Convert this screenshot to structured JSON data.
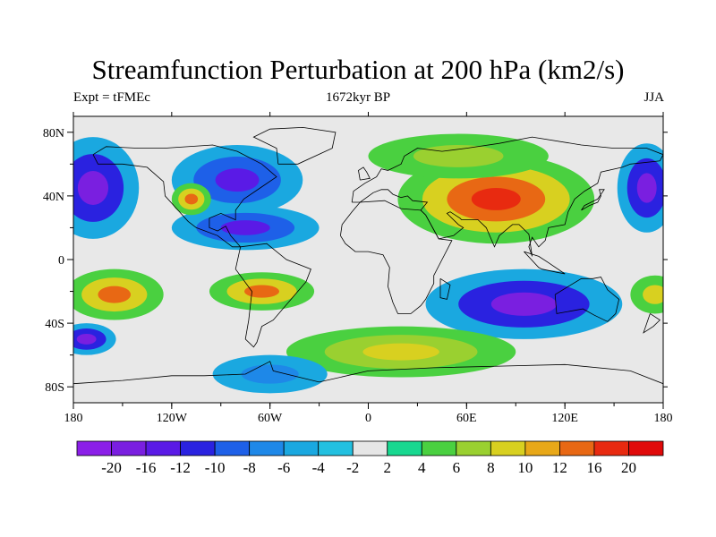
{
  "title": "Streamfunction Perturbation at 200 hPa (km2/s)",
  "subtitle_left": "Expt = tFMEc",
  "subtitle_center": "1672kyr BP",
  "subtitle_right": "JJA",
  "map": {
    "projection": "cylindrical-equidistant",
    "lon_range": [
      -180,
      180
    ],
    "lat_range": [
      -90,
      90
    ],
    "x_ticks": [
      {
        "lon": -180,
        "label": "180"
      },
      {
        "lon": -120,
        "label": "120W"
      },
      {
        "lon": -60,
        "label": "60W"
      },
      {
        "lon": 0,
        "label": "0"
      },
      {
        "lon": 60,
        "label": "60E"
      },
      {
        "lon": 120,
        "label": "120E"
      },
      {
        "lon": 180,
        "label": "180"
      }
    ],
    "y_ticks": [
      {
        "lat": 80,
        "label": "80N"
      },
      {
        "lat": 40,
        "label": "40N"
      },
      {
        "lat": 0,
        "label": "0"
      },
      {
        "lat": -40,
        "label": "40S"
      },
      {
        "lat": -80,
        "label": "80S"
      }
    ],
    "background_color": "#e8e8e8",
    "coastline_color": "#000000"
  },
  "colorbar": {
    "labels": [
      "-20",
      "-16",
      "-12",
      "-10",
      "-8",
      "-6",
      "-4",
      "-2",
      "2",
      "4",
      "6",
      "8",
      "10",
      "12",
      "16",
      "20"
    ],
    "colors": [
      "#8b1fe8",
      "#7a1fe0",
      "#5a1ae6",
      "#2a22e0",
      "#1e60e8",
      "#1e88e8",
      "#1aa8e0",
      "#22c0e0",
      "#e6e6e6",
      "#18d890",
      "#4ad040",
      "#9ad030",
      "#d8d020",
      "#e8a818",
      "#e86814",
      "#e82a10",
      "#e00a0a"
    ]
  },
  "field_blobs": [
    {
      "lon": -168,
      "lat": 45,
      "rx": 28,
      "ry": 32,
      "levels": [
        "-4",
        "-10",
        "-16"
      ]
    },
    {
      "lon": 170,
      "lat": 45,
      "rx": 18,
      "ry": 28,
      "levels": [
        "-4",
        "-10",
        "-16"
      ]
    },
    {
      "lon": -80,
      "lat": 50,
      "rx": 40,
      "ry": 22,
      "levels": [
        "-4",
        "-8",
        "-12"
      ]
    },
    {
      "lon": -75,
      "lat": 20,
      "rx": 45,
      "ry": 14,
      "levels": [
        "-4",
        "-8",
        "-12"
      ]
    },
    {
      "lon": -108,
      "lat": 38,
      "rx": 12,
      "ry": 10,
      "levels": [
        "4",
        "8",
        "12"
      ]
    },
    {
      "lon": 78,
      "lat": 38,
      "rx": 60,
      "ry": 28,
      "levels": [
        "4",
        "8",
        "12",
        "16"
      ]
    },
    {
      "lon": 55,
      "lat": 65,
      "rx": 55,
      "ry": 14,
      "levels": [
        "4",
        "6"
      ]
    },
    {
      "lon": -155,
      "lat": -22,
      "rx": 30,
      "ry": 16,
      "levels": [
        "4",
        "8",
        "12"
      ]
    },
    {
      "lon": -65,
      "lat": -20,
      "rx": 32,
      "ry": 12,
      "levels": [
        "4",
        "8",
        "12"
      ]
    },
    {
      "lon": 95,
      "lat": -28,
      "rx": 60,
      "ry": 22,
      "levels": [
        "-4",
        "-10",
        "-16"
      ]
    },
    {
      "lon": 20,
      "lat": -58,
      "rx": 70,
      "ry": 16,
      "levels": [
        "4",
        "6",
        "8"
      ]
    },
    {
      "lon": -60,
      "lat": -72,
      "rx": 35,
      "ry": 12,
      "levels": [
        "-4",
        "-6"
      ]
    },
    {
      "lon": -172,
      "lat": -50,
      "rx": 18,
      "ry": 10,
      "levels": [
        "-4",
        "-10",
        "-16"
      ]
    },
    {
      "lon": 175,
      "lat": -22,
      "rx": 15,
      "ry": 12,
      "levels": [
        "4",
        "8"
      ]
    }
  ]
}
